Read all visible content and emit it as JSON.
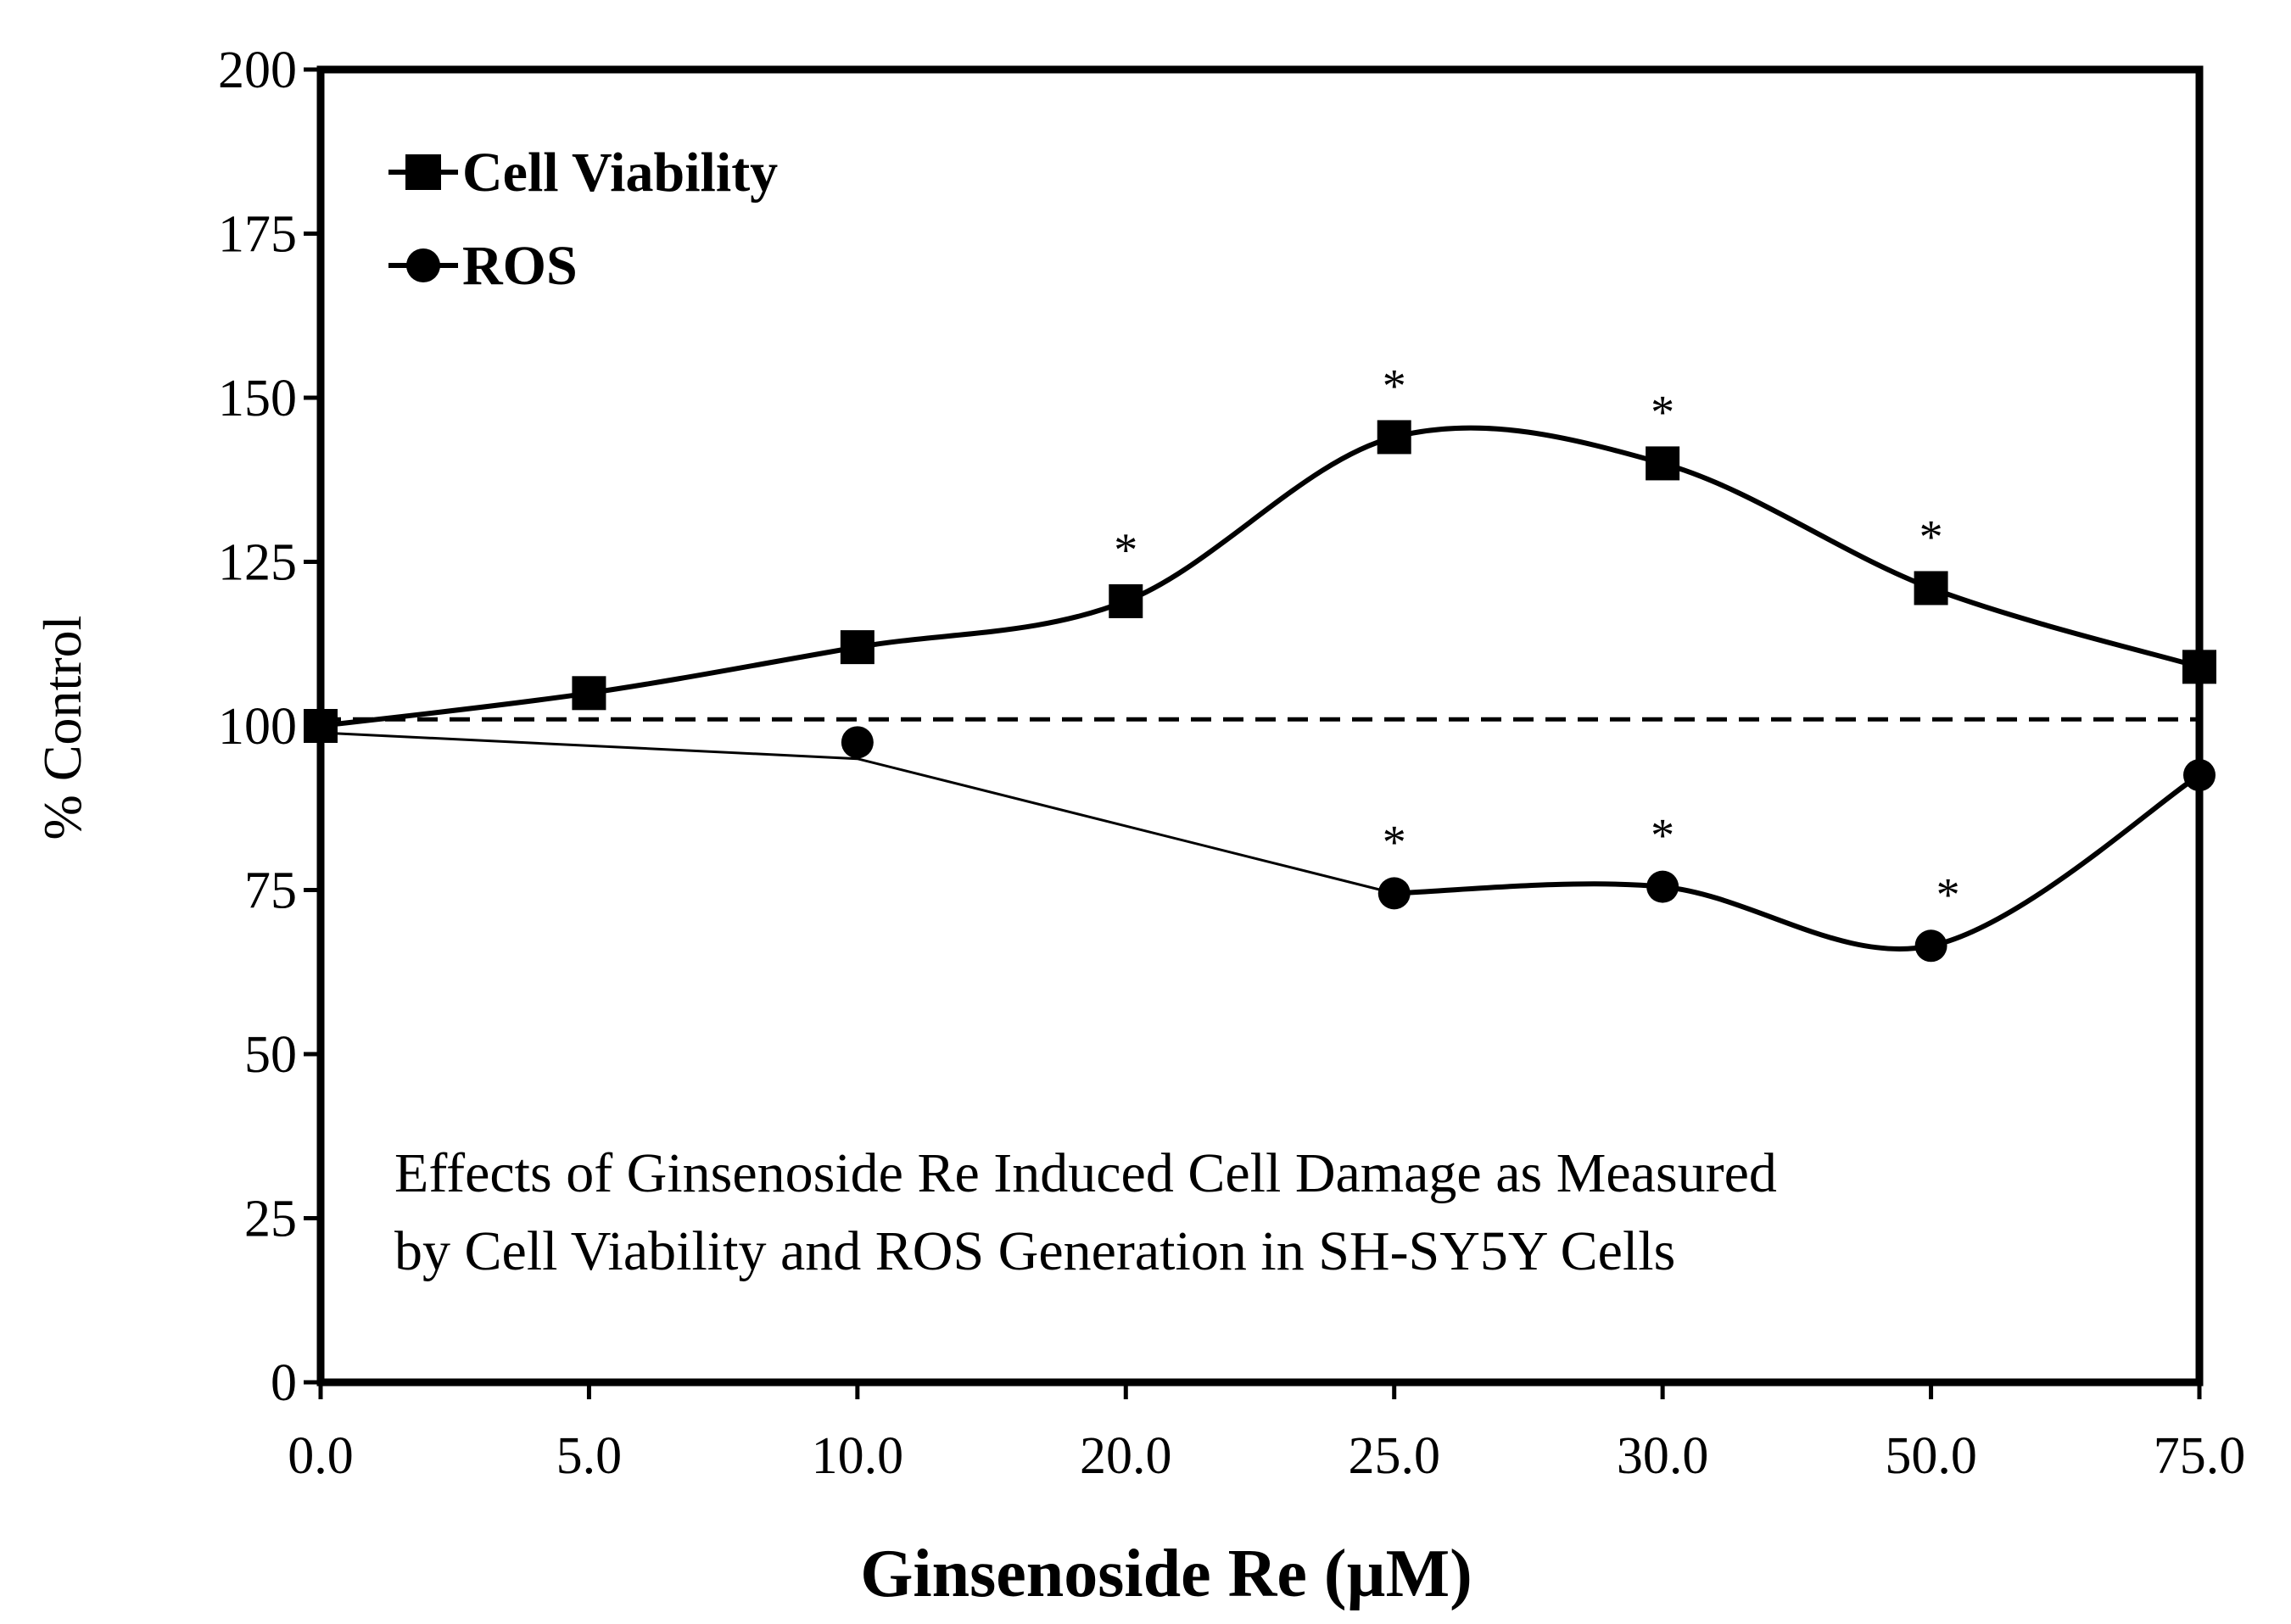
{
  "chart_data": {
    "type": "line",
    "title": "",
    "xlabel": "Ginsenoside Re (µM)",
    "ylabel": "% Control",
    "categories": [
      "0.0",
      "5.0",
      "10.0",
      "20.0",
      "25.0",
      "30.0",
      "50.0",
      "75.0"
    ],
    "ylim": [
      0,
      200
    ],
    "yticks": [
      0,
      25,
      50,
      75,
      100,
      125,
      150,
      175,
      200
    ],
    "grid": false,
    "legend_position": "top-left",
    "reference_line": {
      "y": 101,
      "style": "dashed"
    },
    "series": [
      {
        "name": "Cell Viability",
        "marker": "square",
        "values": [
          100,
          105,
          112,
          119,
          144,
          140,
          121,
          109
        ],
        "significant": [
          false,
          false,
          false,
          true,
          true,
          true,
          true,
          false
        ]
      },
      {
        "name": "ROS",
        "marker": "circle",
        "values": [
          null,
          null,
          97.5,
          null,
          74.5,
          75.5,
          66.5,
          92.5
        ],
        "significant": [
          false,
          false,
          false,
          false,
          true,
          true,
          true,
          false
        ]
      }
    ],
    "significance_marker": "*",
    "annotation": [
      "Effects of Ginsenoside Re Induced Cell Damage as Measured",
      "by Cell Viability and ROS Generation in SH-SY5Y Cells"
    ]
  }
}
